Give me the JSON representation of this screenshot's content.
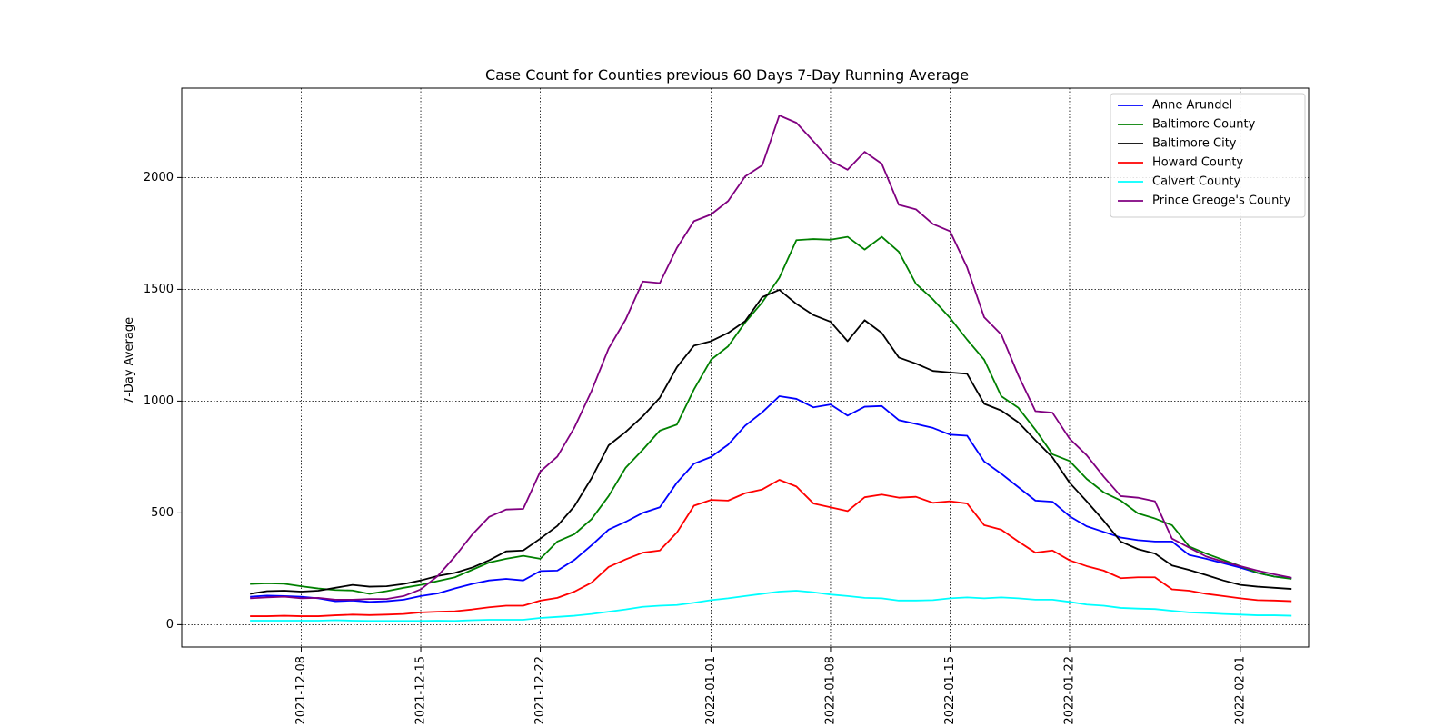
{
  "chart_data": {
    "type": "line",
    "title": "Case Count for Counties previous 60 Days 7-Day Running Average",
    "xlabel": "",
    "ylabel": "7-Day Average",
    "x_start": "2021-12-05",
    "x_end": "2022-02-02",
    "xlim": [
      "2021-12-01",
      "2022-02-05"
    ],
    "ylim": [
      -100,
      2400
    ],
    "x_ticks": [
      "2021-12-08",
      "2021-12-15",
      "2021-12-22",
      "2022-01-01",
      "2022-01-08",
      "2022-01-15",
      "2022-01-22",
      "2022-02-01"
    ],
    "y_ticks": [
      0,
      500,
      1000,
      1500,
      2000
    ],
    "grid": true,
    "legend_position": "top-right",
    "series": [
      {
        "name": "Anne Arundel",
        "color": "#0000ff",
        "values": [
          125,
          130,
          128,
          125,
          118,
          105,
          108,
          102,
          105,
          112,
          128,
          140,
          162,
          182,
          198,
          205,
          198,
          240,
          242,
          290,
          355,
          425,
          460,
          500,
          525,
          635,
          720,
          750,
          805,
          890,
          950,
          1022,
          1010,
          972,
          985,
          935,
          975,
          978,
          915,
          898,
          880,
          850,
          845,
          730,
          675,
          615,
          555,
          550,
          485,
          440,
          415,
          390,
          378,
          372,
          372,
          312,
          295,
          275,
          255,
          232,
          215,
          208
        ]
      },
      {
        "name": "Baltimore County",
        "color": "#008000",
        "values": [
          182,
          185,
          183,
          172,
          162,
          155,
          153,
          138,
          150,
          165,
          178,
          195,
          212,
          245,
          278,
          295,
          308,
          295,
          372,
          405,
          472,
          575,
          702,
          782,
          868,
          895,
          1052,
          1185,
          1245,
          1352,
          1442,
          1552,
          1720,
          1725,
          1722,
          1735,
          1678,
          1735,
          1668,
          1525,
          1455,
          1372,
          1275,
          1185,
          1022,
          970,
          872,
          762,
          732,
          652,
          592,
          555,
          498,
          475,
          445,
          350,
          318,
          290,
          262,
          232,
          215,
          205
        ]
      },
      {
        "name": "Baltimore City",
        "color": "#000000",
        "values": [
          138,
          150,
          152,
          148,
          152,
          165,
          178,
          170,
          172,
          182,
          198,
          218,
          232,
          255,
          288,
          328,
          332,
          385,
          442,
          530,
          655,
          802,
          862,
          932,
          1015,
          1152,
          1248,
          1268,
          1305,
          1358,
          1465,
          1498,
          1435,
          1385,
          1355,
          1268,
          1362,
          1305,
          1195,
          1168,
          1135,
          1128,
          1122,
          988,
          958,
          905,
          825,
          748,
          635,
          552,
          465,
          372,
          338,
          318,
          265,
          245,
          222,
          198,
          178,
          170,
          165,
          160
        ]
      },
      {
        "name": "Howard County",
        "color": "#ff0000",
        "values": [
          38,
          38,
          40,
          38,
          38,
          42,
          45,
          43,
          45,
          48,
          55,
          58,
          60,
          68,
          78,
          85,
          85,
          108,
          120,
          148,
          188,
          258,
          292,
          322,
          332,
          412,
          532,
          558,
          555,
          588,
          605,
          648,
          618,
          542,
          525,
          508,
          570,
          582,
          568,
          572,
          545,
          552,
          542,
          445,
          425,
          372,
          322,
          332,
          288,
          262,
          242,
          208,
          212,
          212,
          158,
          152,
          138,
          128,
          118,
          110,
          108,
          105
        ]
      },
      {
        "name": "Calvert County",
        "color": "#00ffff",
        "values": [
          18,
          18,
          18,
          18,
          18,
          20,
          18,
          17,
          17,
          17,
          17,
          18,
          17,
          20,
          22,
          22,
          22,
          30,
          35,
          40,
          48,
          58,
          68,
          80,
          85,
          88,
          98,
          110,
          118,
          128,
          138,
          148,
          152,
          145,
          135,
          128,
          120,
          118,
          108,
          108,
          110,
          118,
          122,
          118,
          122,
          118,
          112,
          112,
          102,
          90,
          85,
          75,
          72,
          70,
          62,
          55,
          52,
          48,
          45,
          42,
          42,
          40
        ]
      },
      {
        "name": "Prince Greoge's County",
        "color": "#800080",
        "values": [
          118,
          122,
          125,
          118,
          120,
          112,
          112,
          115,
          115,
          128,
          158,
          218,
          305,
          402,
          482,
          515,
          518,
          685,
          752,
          882,
          1045,
          1235,
          1365,
          1535,
          1528,
          1685,
          1805,
          1835,
          1895,
          2005,
          2055,
          2278,
          2245,
          2162,
          2075,
          2035,
          2115,
          2062,
          1878,
          1858,
          1792,
          1760,
          1598,
          1375,
          1298,
          1115,
          955,
          948,
          832,
          758,
          662,
          575,
          568,
          552,
          385,
          345,
          305,
          282,
          262,
          242,
          225,
          210
        ]
      }
    ]
  }
}
